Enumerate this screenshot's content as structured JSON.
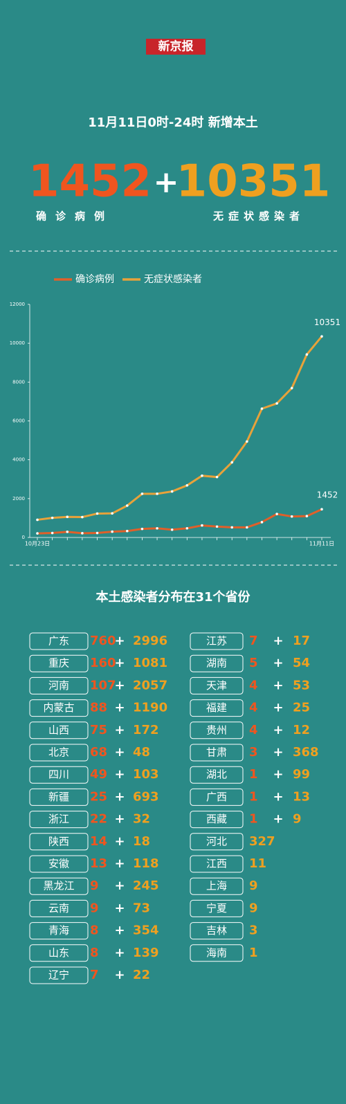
{
  "header": {
    "logo": "新京报",
    "subtitle": "11月11日0时-24时   新增本土",
    "confirmed": "1452",
    "plus": "+",
    "asymptomatic": "10351",
    "confirmed_label": "确诊病例",
    "asymptomatic_label": "无症状感染者"
  },
  "chart_data": {
    "type": "line",
    "categories": [
      "10月23日",
      null,
      null,
      null,
      null,
      null,
      null,
      null,
      null,
      null,
      null,
      null,
      null,
      null,
      null,
      null,
      null,
      null,
      null,
      "11月11日"
    ],
    "series": [
      {
        "name": "确诊病例",
        "color": "#e0602a",
        "values": [
          210,
          230,
          290,
          220,
          230,
          300,
          330,
          440,
          470,
          400,
          470,
          620,
          560,
          520,
          520,
          790,
          1210,
          1080,
          1100,
          1452
        ]
      },
      {
        "name": "无症状感染者",
        "color": "#e8a23a",
        "values": [
          910,
          1010,
          1060,
          1050,
          1230,
          1240,
          1640,
          2250,
          2250,
          2370,
          2680,
          3180,
          3110,
          3870,
          4940,
          6630,
          6900,
          7690,
          9420,
          10351
        ]
      }
    ],
    "ylim": [
      0,
      12000
    ],
    "yticks": [
      0,
      2000,
      4000,
      6000,
      8000,
      10000,
      12000
    ],
    "grid": false,
    "legend": "top"
  },
  "table": {
    "title": "本土感染者分布在31个省份",
    "separator": "+",
    "left": [
      [
        "广东",
        760,
        2996
      ],
      [
        "重庆",
        160,
        1081
      ],
      [
        "河南",
        107,
        2057
      ],
      [
        "内蒙古",
        88,
        1190
      ],
      [
        "山西",
        75,
        172
      ],
      [
        "北京",
        68,
        48
      ],
      [
        "四川",
        49,
        103
      ],
      [
        "新疆",
        25,
        693
      ],
      [
        "浙江",
        22,
        32
      ],
      [
        "陕西",
        14,
        18
      ],
      [
        "安徽",
        13,
        118
      ],
      [
        "黑龙江",
        9,
        245
      ],
      [
        "云南",
        9,
        73
      ],
      [
        "青海",
        8,
        354
      ],
      [
        "山东",
        8,
        139
      ],
      [
        "辽宁",
        7,
        22
      ]
    ],
    "right": [
      [
        "江苏",
        7,
        17
      ],
      [
        "湖南",
        5,
        54
      ],
      [
        "天津",
        4,
        53
      ],
      [
        "福建",
        4,
        25
      ],
      [
        "贵州",
        4,
        12
      ],
      [
        "甘肃",
        3,
        368
      ],
      [
        "湖北",
        1,
        99
      ],
      [
        "广西",
        1,
        13
      ],
      [
        "西藏",
        1,
        9
      ],
      [
        "河北",
        null,
        327
      ],
      [
        "江西",
        null,
        11
      ],
      [
        "上海",
        null,
        9
      ],
      [
        "宁夏",
        null,
        9
      ],
      [
        "吉林",
        null,
        3
      ],
      [
        "海南",
        null,
        1
      ]
    ]
  }
}
